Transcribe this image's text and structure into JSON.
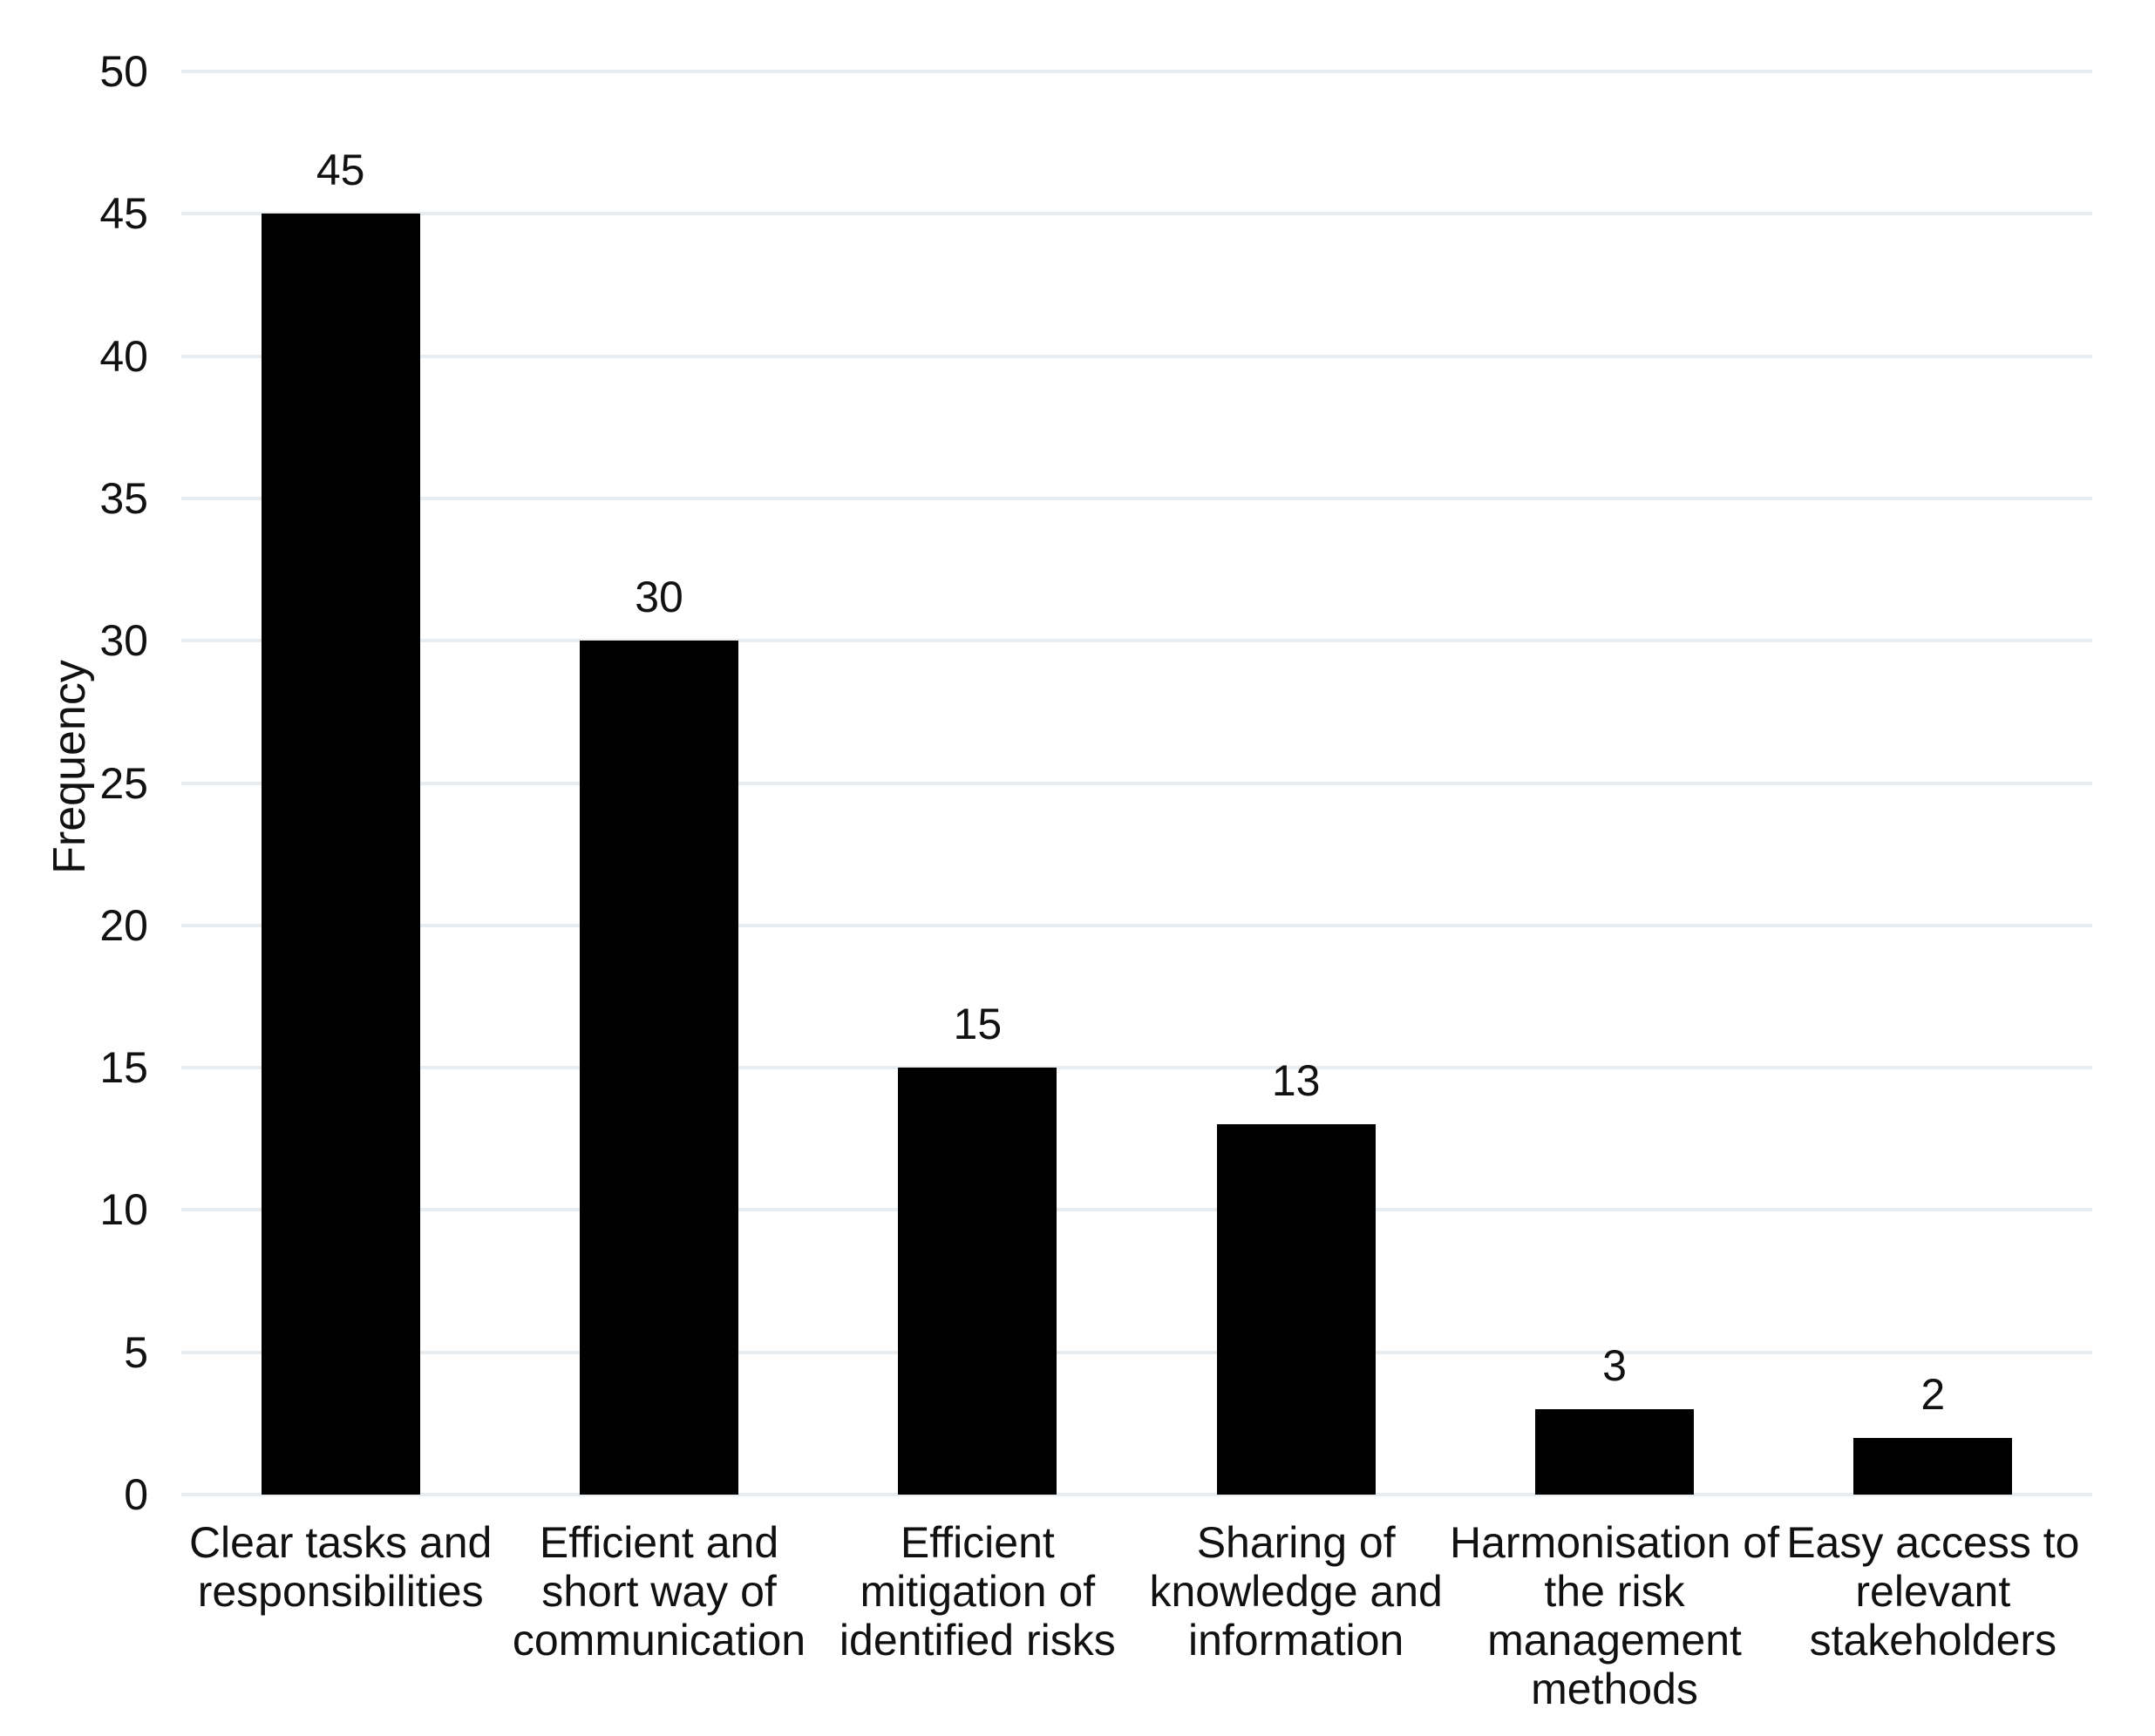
{
  "chart_data": {
    "type": "bar",
    "title": "",
    "categories": [
      "Clear tasks and responsibilities",
      "Efficient and short way of communication",
      "Efficient mitigation of identified risks",
      "Sharing of knowledge and information",
      "Harmonisation of the risk management methods",
      "Easy access to relevant stakeholders"
    ],
    "values": [
      45,
      30,
      15,
      13,
      3,
      2
    ],
    "value_labels": [
      "45",
      "30",
      "15",
      "13",
      "3",
      "2"
    ],
    "ytick_labels": [
      "0",
      "5",
      "10",
      "15",
      "20",
      "25",
      "30",
      "35",
      "40",
      "45",
      "50"
    ],
    "yticks": [
      0,
      5,
      10,
      15,
      20,
      25,
      30,
      35,
      40,
      45,
      50
    ],
    "ylim": [
      0,
      50
    ],
    "xlabel": "",
    "ylabel": "Frequency",
    "grid": "horizontal",
    "legend": "none",
    "show_value_labels": true,
    "colors": {
      "bar": "#000000",
      "gridline": "#e8edf1",
      "text": "#111111",
      "background": "#ffffff"
    }
  }
}
